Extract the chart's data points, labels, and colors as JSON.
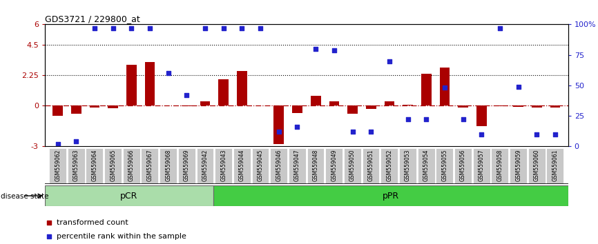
{
  "title": "GDS3721 / 229800_at",
  "samples": [
    "GSM559062",
    "GSM559063",
    "GSM559064",
    "GSM559065",
    "GSM559066",
    "GSM559067",
    "GSM559068",
    "GSM559069",
    "GSM559042",
    "GSM559043",
    "GSM559044",
    "GSM559045",
    "GSM559046",
    "GSM559047",
    "GSM559048",
    "GSM559049",
    "GSM559050",
    "GSM559051",
    "GSM559052",
    "GSM559053",
    "GSM559054",
    "GSM559055",
    "GSM559056",
    "GSM559057",
    "GSM559058",
    "GSM559059",
    "GSM559060",
    "GSM559061"
  ],
  "transformed_count": [
    -0.75,
    -0.6,
    -0.12,
    -0.18,
    3.0,
    3.2,
    0.0,
    -0.05,
    0.35,
    1.95,
    2.55,
    0.0,
    -2.85,
    -0.55,
    0.75,
    0.35,
    -0.6,
    -0.25,
    0.35,
    0.05,
    2.35,
    2.8,
    -0.15,
    -1.5,
    -0.05,
    -0.1,
    -0.12,
    -0.15
  ],
  "percentile_rank": [
    2,
    4,
    97,
    97,
    97,
    97,
    60,
    42,
    97,
    97,
    97,
    97,
    12,
    16,
    80,
    79,
    12,
    12,
    70,
    22,
    22,
    48,
    22,
    10,
    97,
    49,
    10,
    10
  ],
  "pCR_count": 9,
  "pPR_count": 19,
  "bar_color": "#aa0000",
  "dot_color": "#2222cc",
  "ylim_left": [
    -3,
    6
  ],
  "ylim_right": [
    0,
    100
  ],
  "yticks_left": [
    -3,
    0,
    2.25,
    4.5,
    6
  ],
  "yticks_right": [
    0,
    25,
    50,
    75,
    100
  ],
  "dotted_hlines": [
    4.5,
    2.25
  ],
  "pCR_color": "#aaddaa",
  "pPR_color": "#44cc44",
  "label_bar": "transformed count",
  "label_dot": "percentile rank within the sample"
}
